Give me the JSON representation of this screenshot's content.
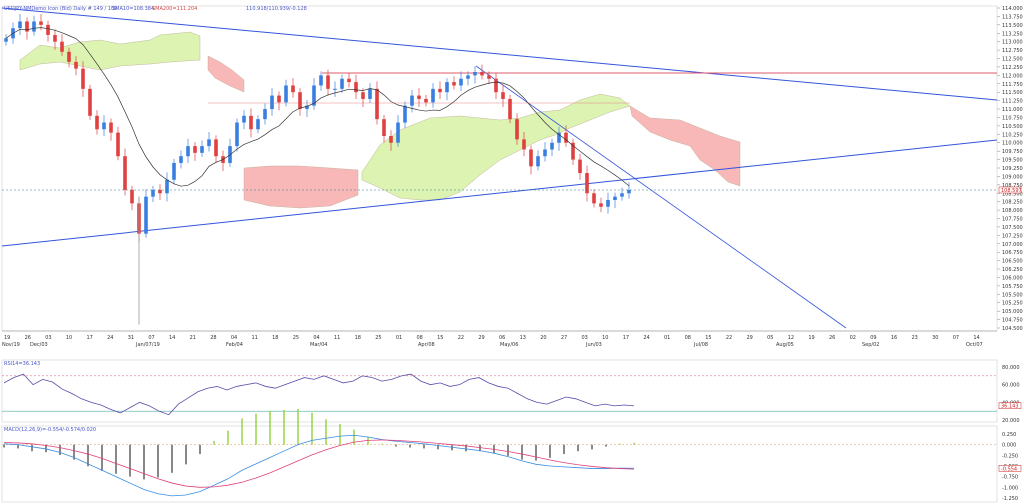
{
  "header": {
    "main_title": "USDJPY-NMDemo Icon (Bid) Daily  # 149 / 109",
    "sma_text": "SMA10=108.384",
    "sma200_text": "SMA200=111.204",
    "ohlc_text": "110.918/110.939/-0.128",
    "rsi_title": "RSI14=36.143",
    "macd_title": "MACD(12,26,9)=-0.554/-0.574/0.020"
  },
  "price_axis": {
    "labels": [
      "114.000",
      "113.750",
      "113.500",
      "113.250",
      "113.000",
      "112.750",
      "112.500",
      "112.250",
      "112.000",
      "111.750",
      "111.500",
      "111.250",
      "111.000",
      "110.750",
      "110.500",
      "110.250",
      "110.000",
      "109.750",
      "109.500",
      "109.250",
      "109.000",
      "108.750",
      "108.500",
      "108.250",
      "108.000",
      "107.750",
      "107.500",
      "107.250",
      "107.000",
      "106.750",
      "106.500",
      "106.250",
      "106.000",
      "105.750",
      "105.500",
      "105.250",
      "105.000",
      "104.750",
      "104.500"
    ],
    "current_label": "108.597"
  },
  "rsi_axis": {
    "labels": [
      "80.000",
      "60.000",
      "40.000",
      "20.000"
    ],
    "current_label": "36.143"
  },
  "macd_axis": {
    "labels": [
      "0.250",
      "0.000",
      "-0.250",
      "-0.500",
      "-0.750",
      "-1.000",
      "-1.250"
    ],
    "current_label": "-0.554"
  },
  "dates": {
    "top_row": [
      "19",
      "26",
      "03",
      "10",
      "17",
      "24",
      "31",
      "07",
      "14",
      "21",
      "28",
      "04",
      "11",
      "18",
      "25",
      "04",
      "11",
      "18",
      "25",
      "01",
      "08",
      "15",
      "22",
      "29",
      "06",
      "13",
      "20",
      "27",
      "03",
      "10",
      "17",
      "24",
      "01",
      "08",
      "15",
      "22",
      "29",
      "05",
      "12",
      "19",
      "26",
      "02",
      "09",
      "16",
      "23",
      "30",
      "07",
      "14"
    ],
    "bottom_row": [
      "Nov/19",
      "Dec/03",
      "Jan/07/19",
      "Feb/04",
      "Mar/04",
      "Apr/08",
      "May/06",
      "Jun/03",
      "Jul/08",
      "Aug/05",
      "Sep/02",
      "Oct/07"
    ]
  },
  "colors": {
    "bull": "#3a7fe0",
    "bear": "#e04040",
    "kumo_bull": "#d8f2a8",
    "kumo_bear": "#f7b0b0",
    "trendline": "#3355dd",
    "resistance": "#e05a6a",
    "rsi_line": "#5a4aa8",
    "macd_line": "#3b8de0",
    "signal_line": "#e0407a",
    "hist_pos": "#8fd23a",
    "hist_neg": "#555555"
  },
  "chart_data": [
    {
      "type": "candlestick",
      "title": "USDJPY-NMDemo Icon (Bid) Daily",
      "ylim": [
        104.5,
        114.0
      ],
      "closes": [
        113.1,
        113.4,
        113.6,
        113.3,
        113.6,
        113.5,
        113.2,
        113.0,
        112.7,
        112.4,
        112.2,
        111.6,
        110.8,
        110.4,
        110.6,
        110.3,
        109.6,
        108.6,
        108.2,
        107.3,
        108.4,
        108.6,
        108.5,
        108.9,
        109.4,
        109.6,
        109.9,
        109.7,
        109.9,
        110.1,
        109.6,
        109.4,
        109.9,
        110.6,
        110.8,
        110.4,
        110.7,
        111.0,
        111.4,
        111.2,
        111.7,
        111.5,
        111.0,
        111.1,
        111.7,
        112.0,
        111.6,
        111.6,
        111.9,
        111.8,
        111.5,
        111.3,
        111.6,
        110.7,
        110.2,
        110.0,
        110.6,
        111.1,
        111.4,
        111.3,
        111.2,
        111.6,
        111.5,
        111.8,
        111.7,
        111.9,
        112.0,
        112.1,
        112.0,
        111.9,
        111.5,
        111.3,
        110.7,
        110.1,
        109.8,
        109.3,
        109.6,
        109.8,
        110.0,
        110.3,
        110.0,
        109.5,
        109.1,
        108.5,
        108.2,
        108.1,
        108.3,
        108.4,
        108.5,
        108.6
      ]
    },
    {
      "type": "line",
      "title": "RSI14=36.143",
      "ylim": [
        20,
        80
      ],
      "levels": [
        70,
        30
      ],
      "values": [
        62,
        68,
        72,
        60,
        66,
        63,
        55,
        50,
        44,
        40,
        37,
        32,
        28,
        34,
        40,
        36,
        30,
        26,
        38,
        45,
        52,
        56,
        58,
        54,
        58,
        60,
        62,
        58,
        56,
        60,
        64,
        68,
        66,
        70,
        66,
        62,
        64,
        70,
        68,
        64,
        66,
        70,
        72,
        64,
        60,
        62,
        58,
        60,
        66,
        68,
        62,
        58,
        56,
        50,
        44,
        40,
        38,
        42,
        46,
        44,
        40,
        36,
        38,
        36,
        37,
        36
      ]
    },
    {
      "type": "bar+line",
      "title": "MACD(12,26,9)=-0.554/-0.574/0.020",
      "ylim": [
        -1.25,
        0.25
      ],
      "macd": [
        0.02,
        0.0,
        -0.05,
        -0.1,
        -0.18,
        -0.3,
        -0.45,
        -0.6,
        -0.75,
        -0.9,
        -1.05,
        -1.15,
        -1.2,
        -1.18,
        -1.1,
        -0.95,
        -0.8,
        -0.6,
        -0.45,
        -0.3,
        -0.15,
        0.0,
        0.1,
        0.15,
        0.2,
        0.22,
        0.18,
        0.12,
        0.08,
        0.05,
        0.02,
        -0.02,
        -0.06,
        -0.1,
        -0.14,
        -0.2,
        -0.28,
        -0.38,
        -0.46,
        -0.5,
        -0.52,
        -0.54,
        -0.56,
        -0.56,
        -0.55,
        -0.554
      ],
      "signal": [
        0.05,
        0.04,
        0.02,
        -0.02,
        -0.07,
        -0.14,
        -0.22,
        -0.32,
        -0.44,
        -0.56,
        -0.68,
        -0.8,
        -0.9,
        -0.97,
        -1.0,
        -0.99,
        -0.95,
        -0.88,
        -0.78,
        -0.66,
        -0.52,
        -0.38,
        -0.24,
        -0.12,
        -0.02,
        0.06,
        0.1,
        0.11,
        0.1,
        0.08,
        0.06,
        0.03,
        0.0,
        -0.03,
        -0.07,
        -0.11,
        -0.16,
        -0.22,
        -0.29,
        -0.36,
        -0.42,
        -0.47,
        -0.51,
        -0.54,
        -0.56,
        -0.574
      ]
    }
  ]
}
